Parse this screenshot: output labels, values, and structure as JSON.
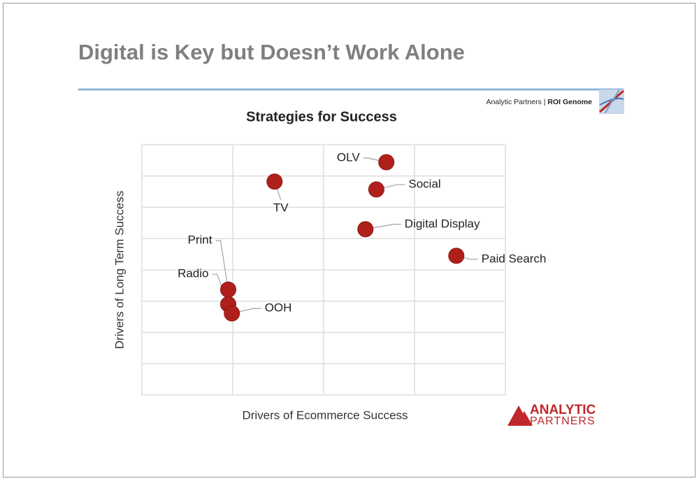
{
  "slide": {
    "title": "Digital is Key but Doesn’t Work Alone",
    "brand_prefix": "Analytic Partners | ",
    "brand_name": "ROI Genome",
    "logo_top": "ANALYTIC",
    "logo_bottom": "PARTNERS"
  },
  "chart_data": {
    "type": "scatter",
    "title": "Strategies for Success",
    "x_label": "Drivers of Ecommerce Success",
    "y_label": "Drivers of Long Term Success",
    "color": "#b0201b",
    "grid": true,
    "xlim": [
      0,
      4
    ],
    "ylim": [
      0,
      8
    ],
    "xticks": [
      0,
      1,
      2,
      3,
      4
    ],
    "yticks": [
      0,
      1,
      2,
      3,
      4,
      5,
      6,
      7,
      8
    ],
    "points": [
      {
        "name": "OLV",
        "x": 2.69,
        "y": 7.44
      },
      {
        "name": "Social",
        "x": 2.58,
        "y": 6.57
      },
      {
        "name": "TV",
        "x": 1.46,
        "y": 6.82
      },
      {
        "name": "Digital Display",
        "x": 2.46,
        "y": 5.3
      },
      {
        "name": "Paid Search",
        "x": 3.46,
        "y": 4.45
      },
      {
        "name": "Print",
        "x": 0.95,
        "y": 3.37
      },
      {
        "name": "Radio",
        "x": 0.95,
        "y": 2.9
      },
      {
        "name": "OOH",
        "x": 0.99,
        "y": 2.61
      }
    ]
  }
}
